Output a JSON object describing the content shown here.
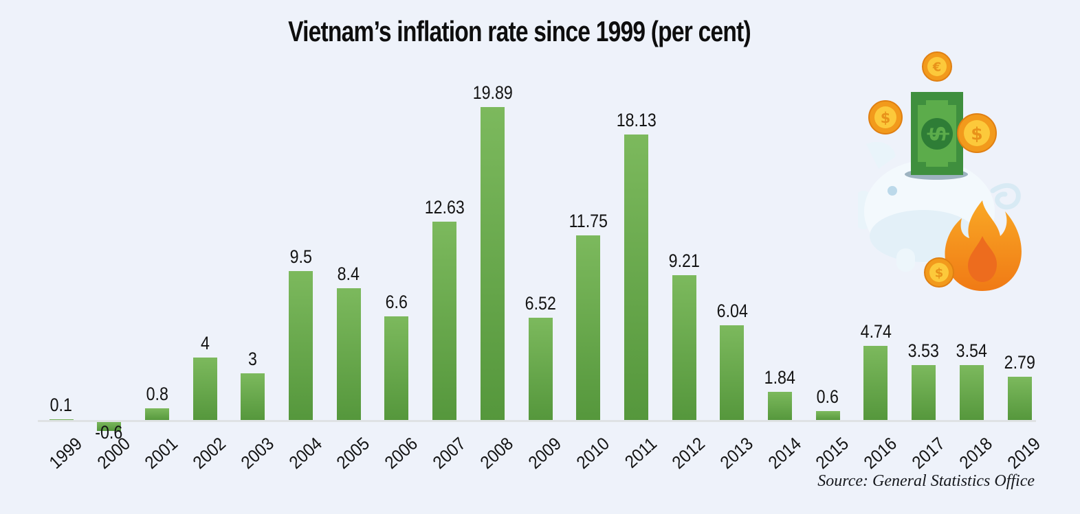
{
  "title": "Vietnam’s inflation rate since 1999 (per cent)",
  "source_note": "Source: General Statistics Office",
  "chart_data": {
    "type": "bar",
    "title": "Vietnam’s inflation rate since 1999 (per cent)",
    "categories": [
      "1999",
      "2000",
      "2001",
      "2002",
      "2003",
      "2004",
      "2005",
      "2006",
      "2007",
      "2008",
      "2009",
      "2010",
      "2011",
      "2012",
      "2013",
      "2014",
      "2015",
      "2016",
      "2017",
      "2018",
      "2019"
    ],
    "values": [
      0.1,
      -0.6,
      0.8,
      4,
      3,
      9.5,
      8.4,
      6.6,
      12.63,
      19.89,
      6.52,
      11.75,
      18.13,
      9.21,
      6.04,
      1.84,
      0.6,
      4.74,
      3.53,
      3.54,
      2.79
    ],
    "value_labels": [
      "0.1",
      "-0.6",
      "0.8",
      "4",
      "3",
      "9.5",
      "8.4",
      "6.6",
      "12.63",
      "19.89",
      "6.52",
      "11.75",
      "18.13",
      "9.21",
      "6.04",
      "1.84",
      "0.6",
      "4.74",
      "3.53",
      "3.54",
      "2.79"
    ],
    "xlabel": "",
    "ylabel": "",
    "ylim": [
      -1,
      21
    ],
    "grid": false,
    "legend": false,
    "bar_color_top": "#7cb95d",
    "bar_color_bottom": "#55973c",
    "axis_line_color": "#dfe2e4",
    "label_color": "#131313",
    "source": "Source: General Statistics Office"
  },
  "colors": {
    "background": "#eef2fa",
    "title_text": "#0e0e0e",
    "source_text": "#15171c",
    "coin_ring": "#f29a1c",
    "coin_face": "#fcc93b",
    "bill_dark_green": "#3f8f3e",
    "bill_light_green": "#5cac4b",
    "piggy_body": "#f3f9fd",
    "flame_orange": "#f59120"
  },
  "illustration": {
    "name": "piggy-bank-inflation-graphic",
    "coin_symbol_euro": "€",
    "coin_symbol_dollar": "$",
    "bill_symbol": "$"
  }
}
